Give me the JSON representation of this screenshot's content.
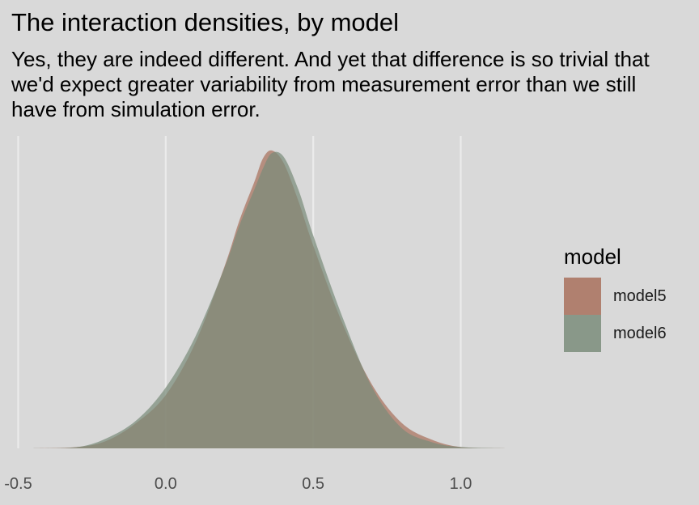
{
  "chart_data": {
    "type": "area",
    "title": "The interaction densities, by model",
    "subtitle": "Yes, they are indeed different. And yet that difference is so trivial that we'd expect greater variability from measurement error than we still have from simulation error.",
    "xlabel": "",
    "ylabel": "",
    "xlim": [
      -0.5,
      1.15
    ],
    "x_ticks": [
      -0.5,
      0.0,
      0.5,
      1.0
    ],
    "x_tick_labels": [
      "-0.5",
      "0.0",
      "0.5",
      "1.0"
    ],
    "grid": "vertical major gridlines",
    "legend": {
      "title": "model",
      "placement": "right"
    },
    "series": [
      {
        "name": "model5",
        "color": "#a8705c",
        "x": [
          -0.45,
          -0.3,
          -0.2,
          -0.1,
          0.0,
          0.1,
          0.2,
          0.25,
          0.3,
          0.33,
          0.36,
          0.4,
          0.45,
          0.5,
          0.6,
          0.7,
          0.8,
          0.9,
          1.0,
          1.15
        ],
        "density": [
          0.0,
          0.01,
          0.06,
          0.2,
          0.42,
          0.83,
          1.44,
          1.8,
          2.1,
          2.29,
          2.35,
          2.25,
          1.95,
          1.6,
          0.98,
          0.5,
          0.2,
          0.07,
          0.01,
          0.0
        ]
      },
      {
        "name": "model6",
        "color": "#7a8c7a",
        "x": [
          -0.45,
          -0.3,
          -0.2,
          -0.1,
          0.0,
          0.1,
          0.2,
          0.25,
          0.3,
          0.33,
          0.36,
          0.4,
          0.45,
          0.5,
          0.6,
          0.7,
          0.8,
          0.9,
          1.0,
          1.15
        ],
        "density": [
          0.0,
          0.01,
          0.08,
          0.22,
          0.48,
          0.88,
          1.43,
          1.76,
          2.04,
          2.21,
          2.33,
          2.3,
          2.04,
          1.68,
          1.03,
          0.48,
          0.16,
          0.05,
          0.01,
          0.0
        ]
      }
    ]
  }
}
